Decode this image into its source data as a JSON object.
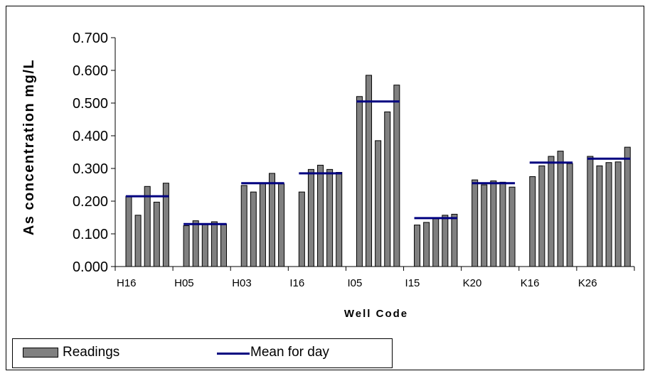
{
  "chart_data": {
    "type": "bar",
    "title": "",
    "xlabel": "Well Code",
    "ylabel": "As concentration mg/L",
    "ylim": [
      0,
      0.7
    ],
    "yticks": [
      "0.000",
      "0.100",
      "0.200",
      "0.300",
      "0.400",
      "0.500",
      "0.600",
      "0.700"
    ],
    "categories": [
      "H16",
      "H05",
      "H03",
      "I16",
      "I05",
      "I15",
      "K20",
      "K16",
      "K26"
    ],
    "series": [
      {
        "name": "Readings",
        "values": [
          [
            0.215,
            0.157,
            0.245,
            0.197,
            0.255
          ],
          [
            0.125,
            0.14,
            0.13,
            0.137,
            0.13
          ],
          [
            0.248,
            0.228,
            0.255,
            0.285,
            0.253
          ],
          [
            0.228,
            0.297,
            0.31,
            0.297,
            0.288
          ],
          [
            0.52,
            0.585,
            0.385,
            0.473,
            0.555
          ],
          [
            0.127,
            0.135,
            0.148,
            0.157,
            0.16
          ],
          [
            0.265,
            0.25,
            0.262,
            0.258,
            0.243
          ],
          [
            0.275,
            0.308,
            0.337,
            0.353,
            0.315
          ],
          [
            0.337,
            0.308,
            0.318,
            0.32,
            0.365
          ]
        ]
      },
      {
        "name": "Mean for day",
        "values": [
          0.215,
          0.13,
          0.255,
          0.285,
          0.505,
          0.148,
          0.255,
          0.318,
          0.33
        ]
      }
    ],
    "legend": {
      "placement": "bottom-left"
    },
    "colors": {
      "bar": "#808080",
      "bar_stroke": "#000000",
      "mean_line": "#000080"
    }
  }
}
